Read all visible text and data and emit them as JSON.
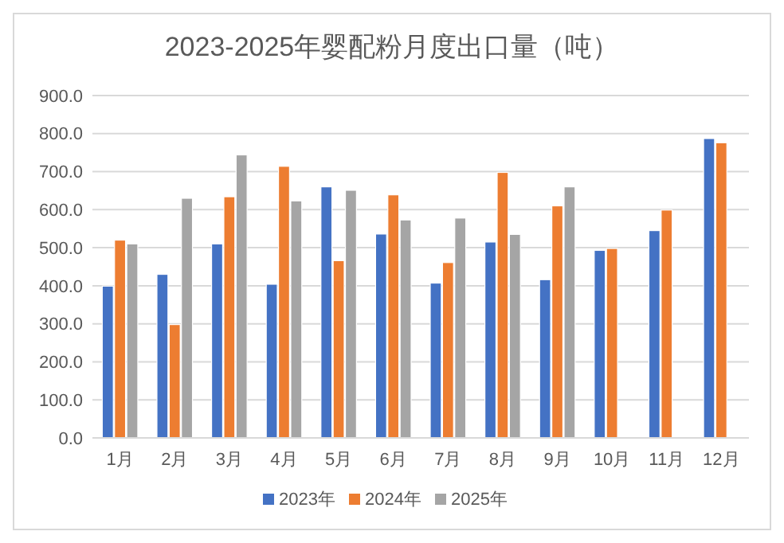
{
  "chart_data": {
    "type": "bar",
    "title": "2023-2025年婴配粉月度出口量（吨）",
    "categories": [
      "1月",
      "2月",
      "3月",
      "4月",
      "5月",
      "6月",
      "7月",
      "8月",
      "9月",
      "10月",
      "11月",
      "12月"
    ],
    "series": [
      {
        "name": "2023年",
        "color": "#4472c4",
        "values": [
          399,
          430,
          510,
          404,
          660,
          536,
          407,
          515,
          416,
          493,
          545,
          787
        ]
      },
      {
        "name": "2024年",
        "color": "#ed7d31",
        "values": [
          520,
          298,
          634,
          714,
          466,
          639,
          461,
          698,
          610,
          498,
          599,
          776
        ]
      },
      {
        "name": "2025年",
        "color": "#a5a5a5",
        "values": [
          510,
          630,
          744,
          623,
          651,
          573,
          578,
          535,
          660,
          null,
          null,
          null
        ]
      }
    ],
    "ylim": [
      0,
      900
    ],
    "yticks": [
      {
        "value": 0,
        "label": "0.0"
      },
      {
        "value": 100,
        "label": "100.0"
      },
      {
        "value": 200,
        "label": "200.0"
      },
      {
        "value": 300,
        "label": "300.0"
      },
      {
        "value": 400,
        "label": "400.0"
      },
      {
        "value": 500,
        "label": "500.0"
      },
      {
        "value": 600,
        "label": "600.0"
      },
      {
        "value": 700,
        "label": "700.0"
      },
      {
        "value": 800,
        "label": "800.0"
      },
      {
        "value": 900,
        "label": "900.0"
      }
    ],
    "grid": "y",
    "legend": "bottom"
  }
}
